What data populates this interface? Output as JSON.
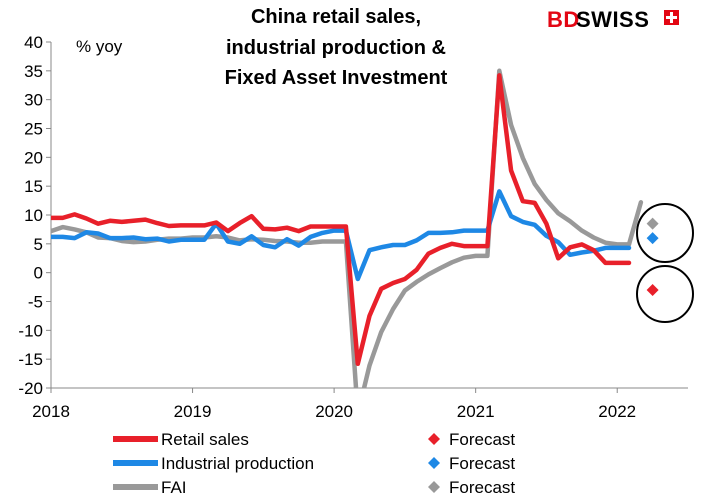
{
  "logo": {
    "text_bd": "BD",
    "text_swiss": "SWISS",
    "brand_color": "#e30613"
  },
  "chart_data": {
    "type": "line",
    "title": [
      "China retail sales,",
      "industrial production &",
      "Fixed Asset Investment"
    ],
    "ylabel": "% yoy",
    "ylim": [
      -20,
      40
    ],
    "yticks": [
      -20,
      -15,
      -10,
      -5,
      0,
      5,
      10,
      15,
      20,
      25,
      30,
      35,
      40
    ],
    "xlim": [
      2018,
      2022.5
    ],
    "xticks": [
      2018,
      2019,
      2020,
      2021,
      2022
    ],
    "grid": false,
    "legend_position": "bottom",
    "series": [
      {
        "name": "Retail sales",
        "color": "#e8202a",
        "x": [
          2018.0,
          2018.083,
          2018.167,
          2018.25,
          2018.333,
          2018.417,
          2018.5,
          2018.583,
          2018.667,
          2018.75,
          2018.833,
          2018.917,
          2019.0,
          2019.083,
          2019.167,
          2019.25,
          2019.333,
          2019.417,
          2019.5,
          2019.583,
          2019.667,
          2019.75,
          2019.833,
          2019.917,
          2020.0,
          2020.083,
          2020.167,
          2020.25,
          2020.333,
          2020.417,
          2020.5,
          2020.583,
          2020.667,
          2020.75,
          2020.833,
          2020.917,
          2021.0,
          2021.083,
          2021.167,
          2021.25,
          2021.333,
          2021.417,
          2021.5,
          2021.583,
          2021.667,
          2021.75,
          2021.833,
          2021.917,
          2022.0,
          2022.083
        ],
        "values": [
          9.5,
          9.5,
          10.1,
          9.4,
          8.5,
          9.0,
          8.8,
          9.0,
          9.2,
          8.6,
          8.1,
          8.2,
          8.2,
          8.2,
          8.7,
          7.2,
          8.6,
          9.8,
          7.6,
          7.5,
          7.8,
          7.2,
          8.0,
          8.0,
          8.0,
          8.0,
          -15.8,
          -7.5,
          -2.8,
          -1.8,
          -1.1,
          0.5,
          3.3,
          4.3,
          5.0,
          4.6,
          4.6,
          4.6,
          34.2,
          17.7,
          12.4,
          12.1,
          8.5,
          2.5,
          4.4,
          4.9,
          3.9,
          1.7,
          1.7,
          1.7
        ]
      },
      {
        "name": "Industrial production",
        "color": "#1e88e5",
        "x": [
          2018.0,
          2018.083,
          2018.167,
          2018.25,
          2018.333,
          2018.417,
          2018.5,
          2018.583,
          2018.667,
          2018.75,
          2018.833,
          2018.917,
          2019.0,
          2019.083,
          2019.167,
          2019.25,
          2019.333,
          2019.417,
          2019.5,
          2019.583,
          2019.667,
          2019.75,
          2019.833,
          2019.917,
          2020.0,
          2020.083,
          2020.167,
          2020.25,
          2020.333,
          2020.417,
          2020.5,
          2020.583,
          2020.667,
          2020.75,
          2020.833,
          2020.917,
          2021.0,
          2021.083,
          2021.167,
          2021.25,
          2021.333,
          2021.417,
          2021.5,
          2021.583,
          2021.667,
          2021.75,
          2021.833,
          2021.917,
          2022.0,
          2022.083
        ],
        "values": [
          6.2,
          6.2,
          6.0,
          7.0,
          6.8,
          6.0,
          6.0,
          6.1,
          5.8,
          5.9,
          5.4,
          5.7,
          5.7,
          5.7,
          8.5,
          5.4,
          5.0,
          6.3,
          4.8,
          4.4,
          5.8,
          4.7,
          6.2,
          6.9,
          7.3,
          7.3,
          -1.1,
          3.9,
          4.4,
          4.8,
          4.8,
          5.6,
          6.9,
          6.9,
          7.0,
          7.3,
          7.3,
          7.3,
          14.1,
          9.8,
          8.8,
          8.3,
          6.4,
          5.3,
          3.1,
          3.5,
          3.8,
          4.3,
          4.3,
          4.3
        ]
      },
      {
        "name": "FAI",
        "color": "#999999",
        "x": [
          2018.0,
          2018.083,
          2018.167,
          2018.25,
          2018.333,
          2018.417,
          2018.5,
          2018.583,
          2018.667,
          2018.75,
          2018.833,
          2018.917,
          2019.0,
          2019.083,
          2019.167,
          2019.25,
          2019.333,
          2019.417,
          2019.5,
          2019.583,
          2019.667,
          2019.75,
          2019.833,
          2019.917,
          2020.0,
          2020.083,
          2020.167,
          2020.25,
          2020.333,
          2020.417,
          2020.5,
          2020.583,
          2020.667,
          2020.75,
          2020.833,
          2020.917,
          2021.0,
          2021.083,
          2021.167,
          2021.25,
          2021.333,
          2021.417,
          2021.5,
          2021.583,
          2021.667,
          2021.75,
          2021.833,
          2021.917,
          2022.0,
          2022.083,
          2022.167
        ],
        "values": [
          7.2,
          7.9,
          7.5,
          7.0,
          6.1,
          6.0,
          5.5,
          5.3,
          5.4,
          5.7,
          5.9,
          5.9,
          6.1,
          6.1,
          6.3,
          6.1,
          5.6,
          5.8,
          5.7,
          5.5,
          5.4,
          5.2,
          5.2,
          5.4,
          5.4,
          5.4,
          -24.5,
          -16.1,
          -10.3,
          -6.3,
          -3.1,
          -1.6,
          -0.3,
          0.8,
          1.8,
          2.6,
          2.9,
          2.9,
          35.0,
          25.6,
          19.9,
          15.4,
          12.6,
          10.3,
          8.9,
          7.3,
          6.1,
          5.2,
          4.9,
          4.9,
          12.2
        ]
      }
    ],
    "forecasts": [
      {
        "name": "Forecast",
        "series": "Retail sales",
        "color": "#e8202a",
        "x": 2022.25,
        "y": -3.0
      },
      {
        "name": "Forecast",
        "series": "Industrial production",
        "color": "#1e88e5",
        "x": 2022.25,
        "y": 6.0
      },
      {
        "name": "Forecast",
        "series": "FAI",
        "color": "#999999",
        "x": 2022.25,
        "y": 8.5
      }
    ]
  }
}
